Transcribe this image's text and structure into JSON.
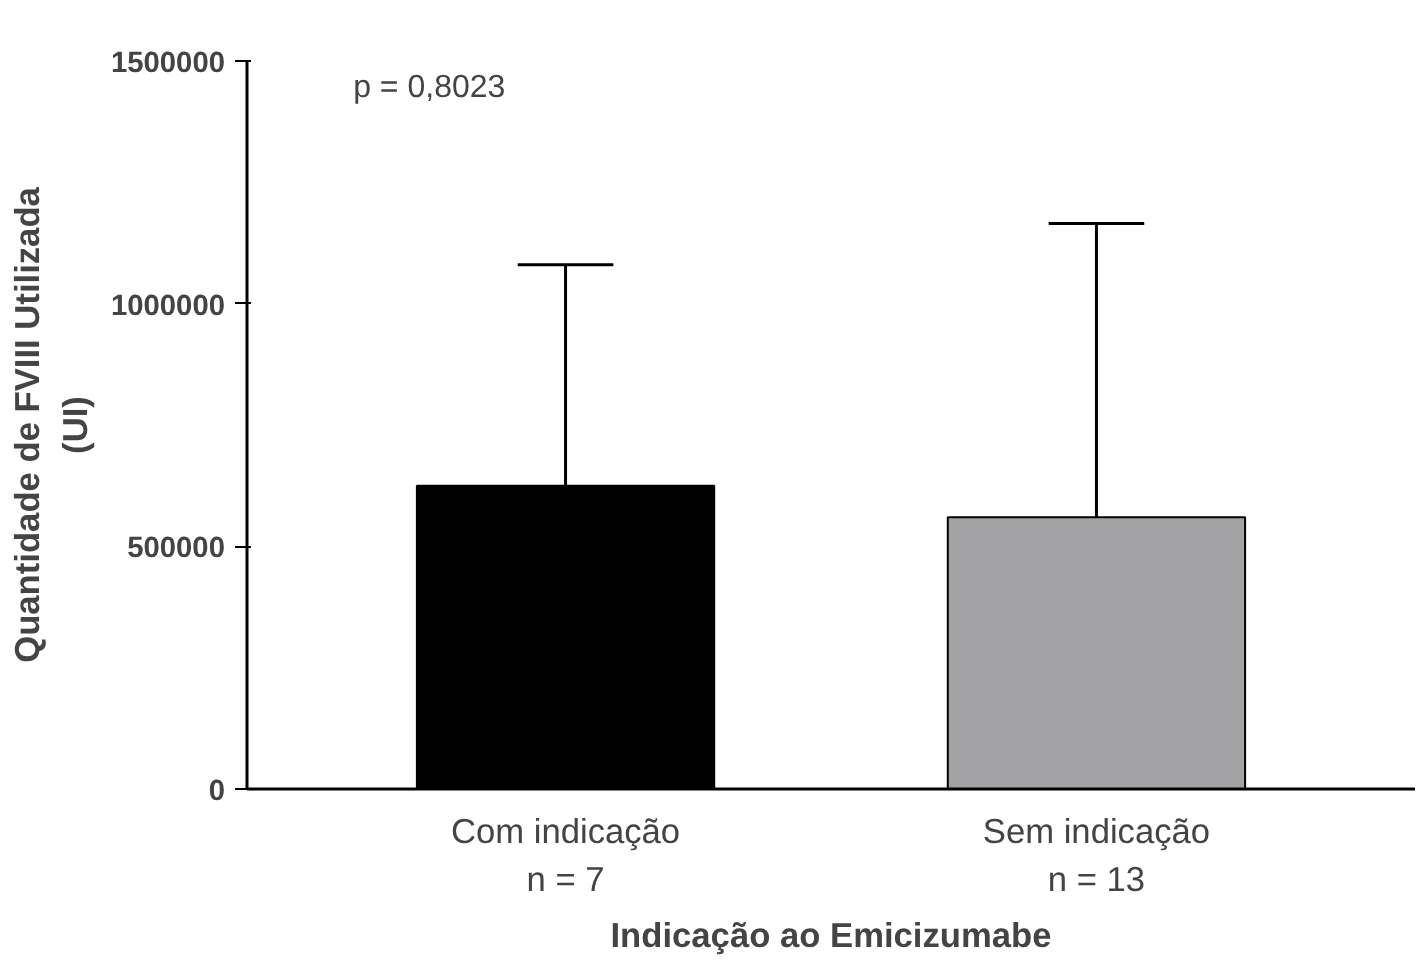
{
  "chart_data": {
    "type": "bar",
    "xlabel": "Indicação ao Emicizumabe",
    "ylabel": "Quantidade de FVIII Utilizada\n(UI)",
    "categories": [
      "Com indicação\nn = 7",
      "Sem indicação\nn = 13"
    ],
    "values": [
      625000,
      560000
    ],
    "colors": [
      "#000000",
      "#a3a3a6"
    ],
    "errors": [
      [
        625000,
        1080000
      ],
      [
        560000,
        1165000
      ]
    ],
    "ylim": [
      0,
      1500000
    ],
    "yticks": [
      0,
      500000,
      1000000,
      1500000
    ],
    "annotations": [
      "p = 0,8023"
    ],
    "grid": false
  }
}
